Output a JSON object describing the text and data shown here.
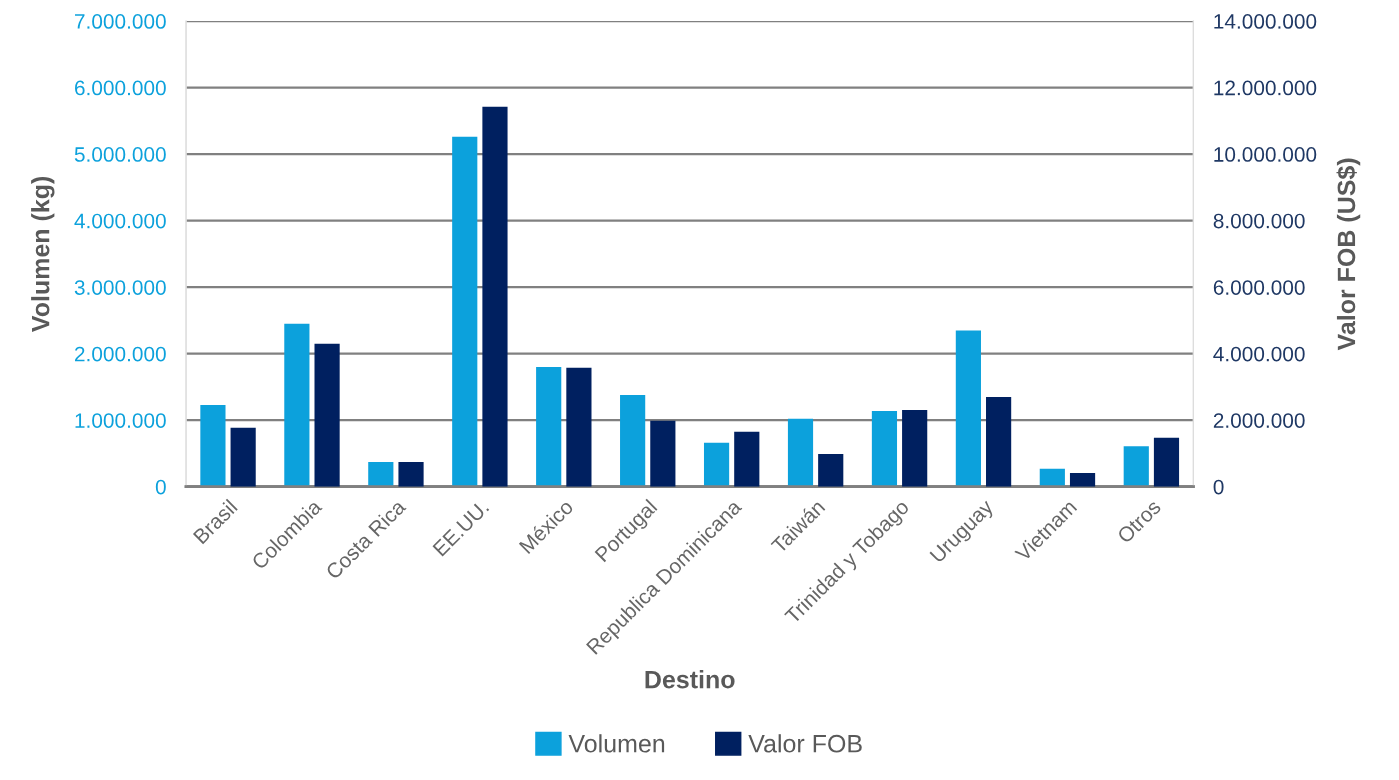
{
  "chart_data": {
    "type": "bar",
    "xlabel": "Destino",
    "ylabel": "Volumen (kg)",
    "y2label": "Valor FOB (US$)",
    "categories": [
      "Brasil",
      "Colombia",
      "Costa Rica",
      "EE.UU.",
      "México",
      "Portugal",
      "Republica Dominicana",
      "Taiwán",
      "Trinidad y Tobago",
      "Uruguay",
      "Vietnam",
      "Otros"
    ],
    "series": [
      {
        "name": "Volumen",
        "color": "#0ca1dc",
        "values": [
          1230000,
          2450000,
          370000,
          5260000,
          1800000,
          1380000,
          660000,
          1020000,
          1140000,
          2350000,
          270000,
          610000
        ]
      },
      {
        "name": "Valor FOB",
        "color": "#002060",
        "axis": "y2",
        "values": [
          1770000,
          4300000,
          740000,
          11420000,
          3580000,
          1980000,
          1650000,
          980000,
          2310000,
          2700000,
          410000,
          1470000
        ]
      }
    ],
    "ylim": [
      0,
      7000000
    ],
    "yticks": [
      {
        "value": 0,
        "label": "0"
      },
      {
        "value": 1000000,
        "label": "1.000.000"
      },
      {
        "value": 2000000,
        "label": "2.000.000"
      },
      {
        "value": 3000000,
        "label": "3.000.000"
      },
      {
        "value": 4000000,
        "label": "4.000.000"
      },
      {
        "value": 5000000,
        "label": "5.000.000"
      },
      {
        "value": 6000000,
        "label": "6.000.000"
      },
      {
        "value": 7000000,
        "label": "7.000.000"
      }
    ],
    "y2lim": [
      0,
      14000000
    ],
    "y2ticks": [
      {
        "value": 0,
        "label": "0"
      },
      {
        "value": 2000000,
        "label": "2.000.000"
      },
      {
        "value": 4000000,
        "label": "4.000.000"
      },
      {
        "value": 6000000,
        "label": "6.000.000"
      },
      {
        "value": 8000000,
        "label": "8.000.000"
      },
      {
        "value": 10000000,
        "label": "10.000.000"
      },
      {
        "value": 12000000,
        "label": "12.000.000"
      },
      {
        "value": 14000000,
        "label": "14.000.000"
      }
    ],
    "grid": "y",
    "legend": "bottom"
  }
}
